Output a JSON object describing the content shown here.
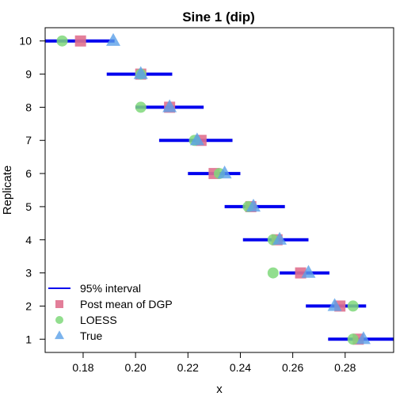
{
  "chart_data": {
    "type": "scatter",
    "title": "Sine 1 (dip)",
    "xlabel": "x",
    "ylabel": "Replicate",
    "xlim": [
      0.1655,
      0.2985
    ],
    "ylim": [
      0.6,
      10.4
    ],
    "xticks": [
      0.18,
      0.2,
      0.22,
      0.24,
      0.26,
      0.28
    ],
    "xtick_labels": [
      "0.18",
      "0.20",
      "0.22",
      "0.24",
      "0.26",
      "0.28"
    ],
    "yticks": [
      1,
      2,
      3,
      4,
      5,
      6,
      7,
      8,
      9,
      10
    ],
    "ytick_labels": [
      "1",
      "2",
      "3",
      "4",
      "5",
      "6",
      "7",
      "8",
      "9",
      "10"
    ],
    "legend_position": "bottom-left",
    "colors": {
      "interval": "#0000ee",
      "post_mean": "#e0708e",
      "loess": "#7fd87a",
      "true": "#5aa0e8"
    },
    "series": [
      {
        "name": "95% interval",
        "marker": "line",
        "replicate": [
          1,
          2,
          3,
          4,
          5,
          6,
          7,
          8,
          9,
          10
        ],
        "low": [
          0.2735,
          0.265,
          0.255,
          0.241,
          0.234,
          0.22,
          0.209,
          0.2,
          0.189,
          0.1655
        ],
        "high": [
          0.2985,
          0.288,
          0.274,
          0.266,
          0.257,
          0.24,
          0.237,
          0.226,
          0.214,
          0.192
        ]
      },
      {
        "name": "Post mean of DGP",
        "marker": "square",
        "replicate": [
          1,
          2,
          3,
          4,
          5,
          6,
          7,
          8,
          9,
          10
        ],
        "values": [
          0.285,
          0.278,
          0.263,
          0.254,
          0.244,
          0.23,
          0.225,
          0.213,
          0.202,
          0.179
        ]
      },
      {
        "name": "LOESS",
        "marker": "circle",
        "replicate": [
          1,
          2,
          3,
          4,
          5,
          6,
          7,
          8,
          9,
          10
        ],
        "values": [
          0.283,
          0.283,
          0.2525,
          0.2525,
          0.243,
          0.232,
          0.2225,
          0.202,
          0.202,
          0.172
        ]
      },
      {
        "name": "True",
        "marker": "triangle",
        "replicate": [
          1,
          2,
          3,
          4,
          5,
          6,
          7,
          8,
          9,
          10
        ],
        "values": [
          0.287,
          0.276,
          0.266,
          0.255,
          0.245,
          0.234,
          0.2235,
          0.213,
          0.202,
          0.1915
        ]
      }
    ]
  }
}
